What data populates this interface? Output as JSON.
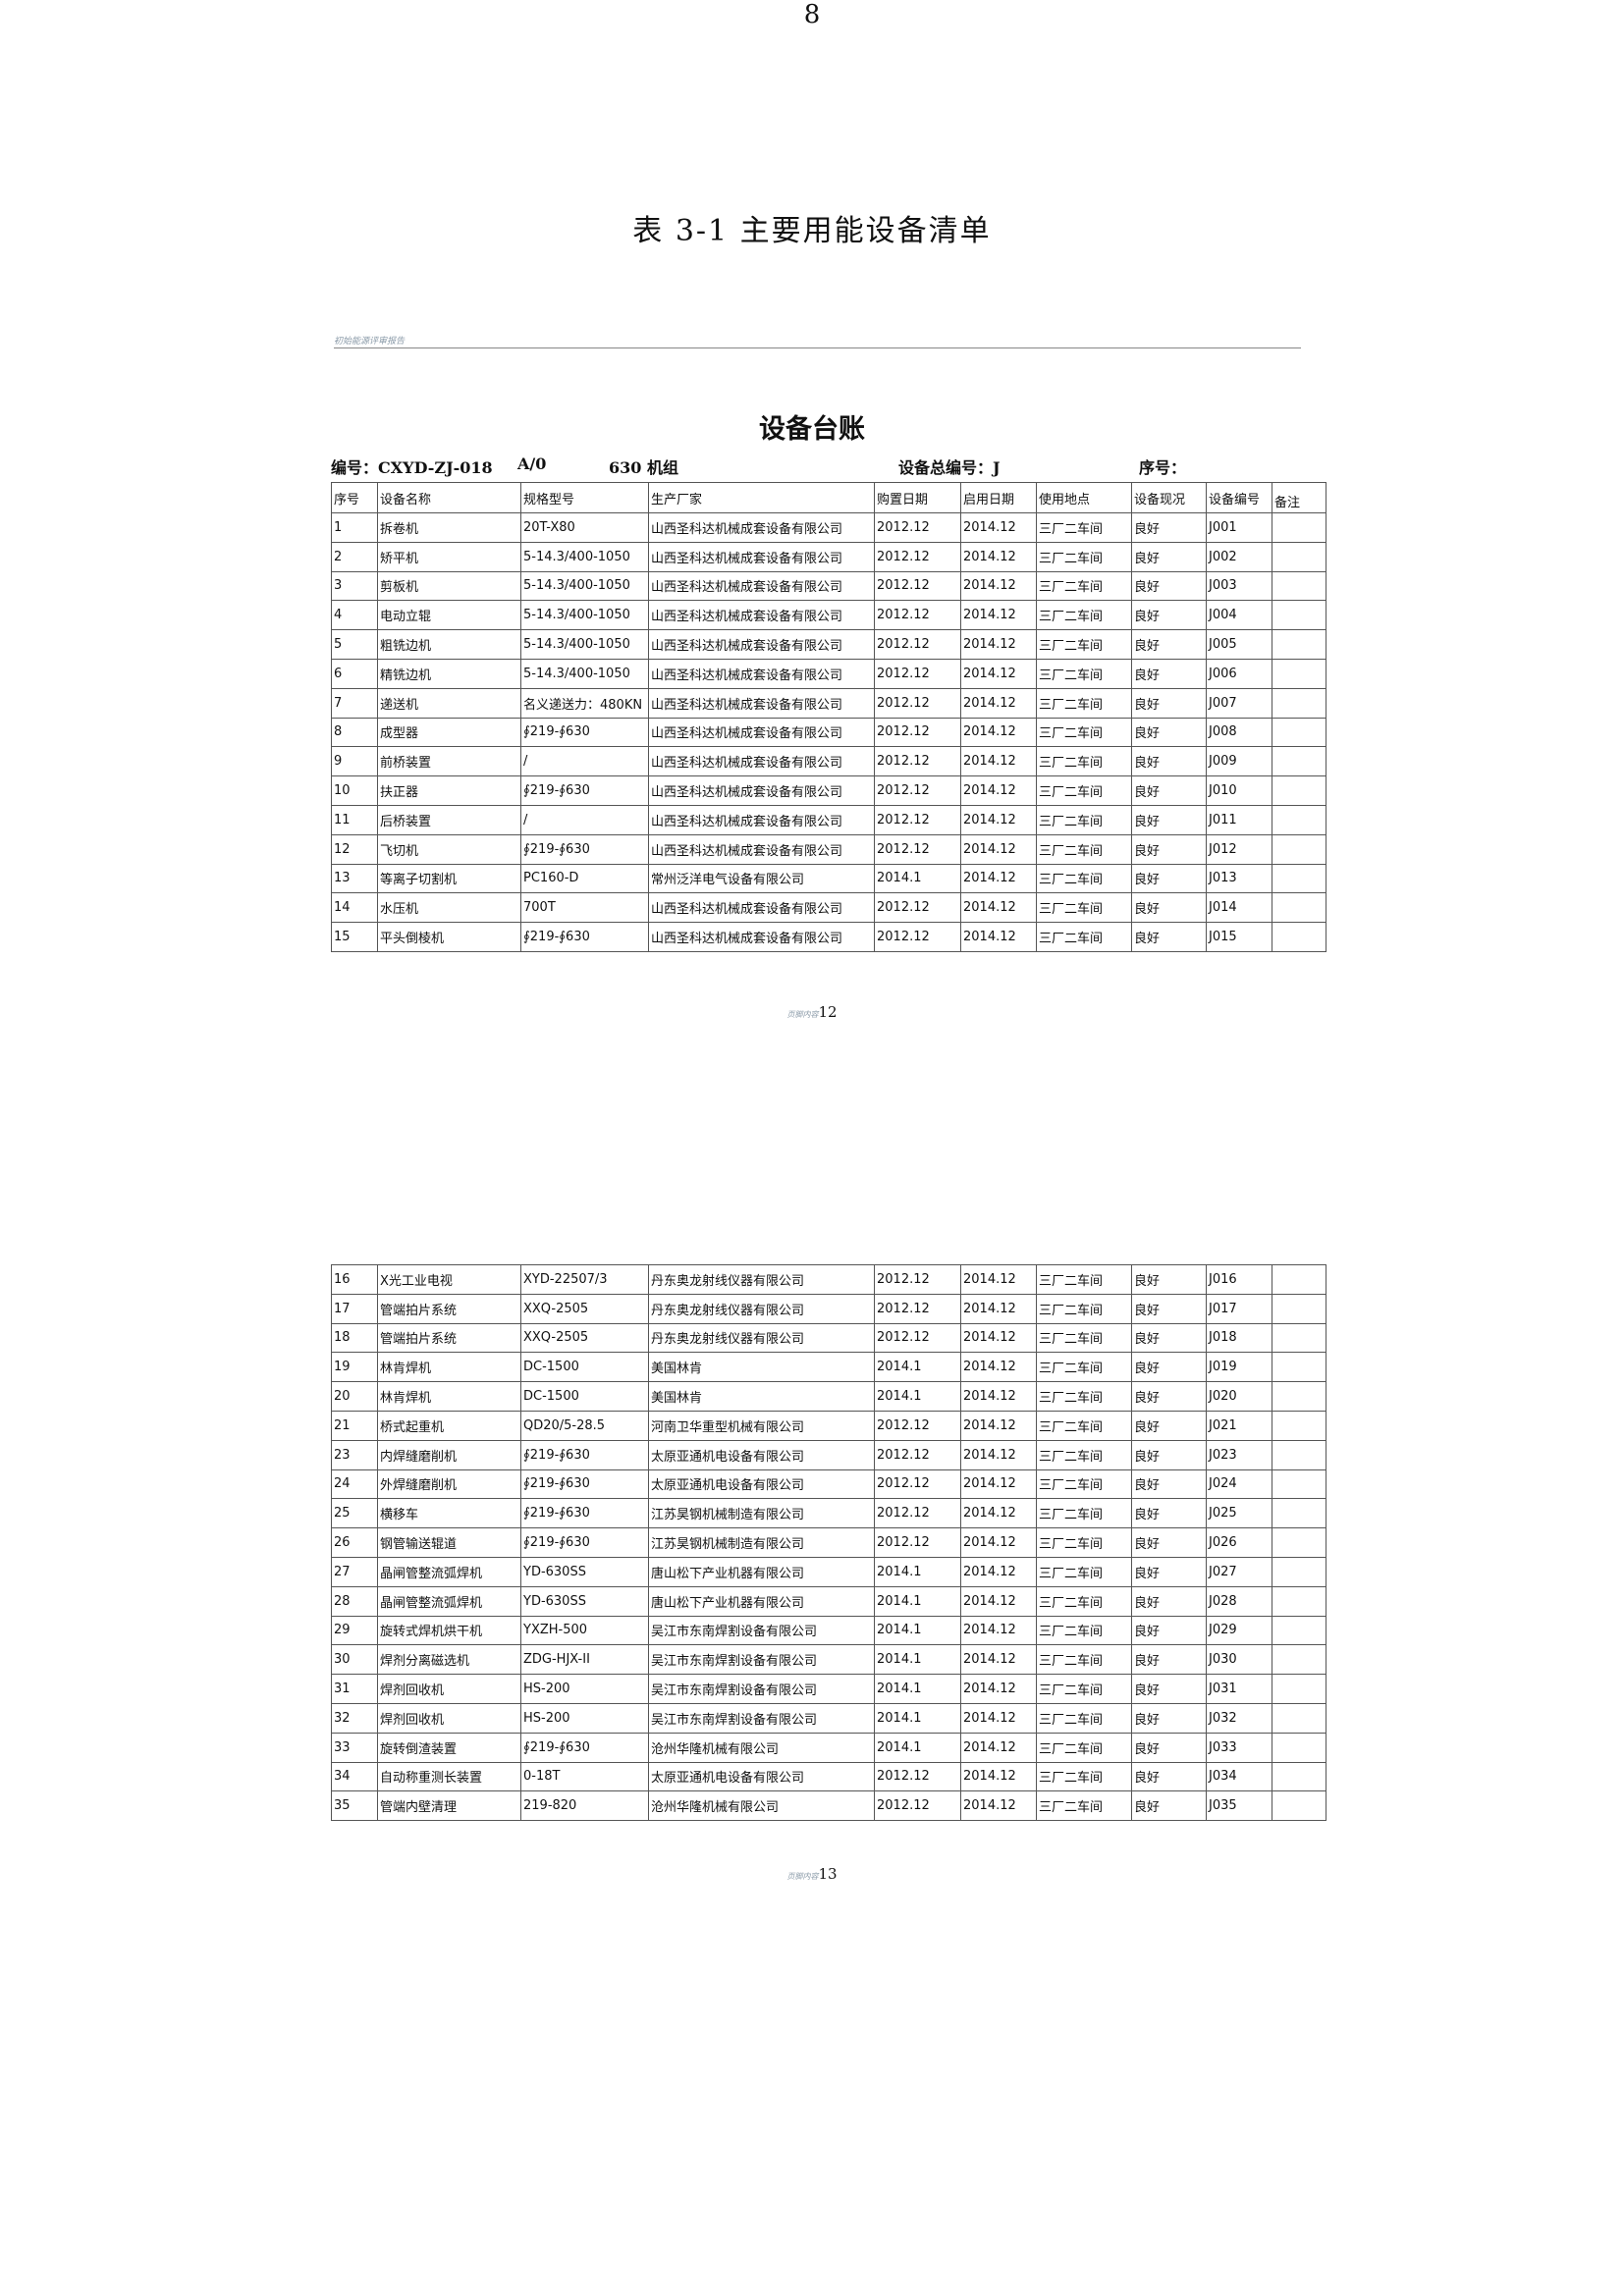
{
  "doc_title": "表 3-1  主要用能设备清单",
  "running_header": "初始能源评审报告",
  "ledger": {
    "title": "设备台账",
    "code": "编号：CXYD-ZJ-018",
    "version": "A/0",
    "unit": "630 机组",
    "equipment_total_no": "设备总编号：J",
    "serial_no": "序号："
  },
  "columns": [
    "序号",
    "设备名称",
    "规格型号",
    "生产厂家",
    "购置日期",
    "启用日期",
    "使用地点",
    "设备现况",
    "设备编号",
    "备注"
  ],
  "table1_rows": [
    [
      "1",
      "拆卷机",
      "20T-X80",
      "山西圣科达机械成套设备有限公司",
      "2012.12",
      "2014.12",
      "三厂二车间",
      "良好",
      "J001",
      ""
    ],
    [
      "2",
      "矫平机",
      "5-14.3/400-1050",
      "山西圣科达机械成套设备有限公司",
      "2012.12",
      "2014.12",
      "三厂二车间",
      "良好",
      "J002",
      ""
    ],
    [
      "3",
      "剪板机",
      "5-14.3/400-1050",
      "山西圣科达机械成套设备有限公司",
      "2012.12",
      "2014.12",
      "三厂二车间",
      "良好",
      "J003",
      ""
    ],
    [
      "4",
      "电动立辊",
      "5-14.3/400-1050",
      "山西圣科达机械成套设备有限公司",
      "2012.12",
      "2014.12",
      "三厂二车间",
      "良好",
      "J004",
      ""
    ],
    [
      "5",
      "粗铣边机",
      "5-14.3/400-1050",
      "山西圣科达机械成套设备有限公司",
      "2012.12",
      "2014.12",
      "三厂二车间",
      "良好",
      "J005",
      ""
    ],
    [
      "6",
      "精铣边机",
      "5-14.3/400-1050",
      "山西圣科达机械成套设备有限公司",
      "2012.12",
      "2014.12",
      "三厂二车间",
      "良好",
      "J006",
      ""
    ],
    [
      "7",
      "递送机",
      "名义递送力：480KN",
      "山西圣科达机械成套设备有限公司",
      "2012.12",
      "2014.12",
      "三厂二车间",
      "良好",
      "J007",
      ""
    ],
    [
      "8",
      "成型器",
      "∮219-∮630",
      "山西圣科达机械成套设备有限公司",
      "2012.12",
      "2014.12",
      "三厂二车间",
      "良好",
      "J008",
      ""
    ],
    [
      "9",
      "前桥装置",
      "/",
      "山西圣科达机械成套设备有限公司",
      "2012.12",
      "2014.12",
      "三厂二车间",
      "良好",
      "J009",
      ""
    ],
    [
      "10",
      "扶正器",
      "∮219-∮630",
      "山西圣科达机械成套设备有限公司",
      "2012.12",
      "2014.12",
      "三厂二车间",
      "良好",
      "J010",
      ""
    ],
    [
      "11",
      "后桥装置",
      "/",
      "山西圣科达机械成套设备有限公司",
      "2012.12",
      "2014.12",
      "三厂二车间",
      "良好",
      "J011",
      ""
    ],
    [
      "12",
      "飞切机",
      "∮219-∮630",
      "山西圣科达机械成套设备有限公司",
      "2012.12",
      "2014.12",
      "三厂二车间",
      "良好",
      "J012",
      ""
    ],
    [
      "13",
      "等离子切割机",
      "PC160-D",
      "常州泛洋电气设备有限公司",
      "2014.1",
      "2014.12",
      "三厂二车间",
      "良好",
      "J013",
      ""
    ],
    [
      "14",
      "水压机",
      "700T",
      "山西圣科达机械成套设备有限公司",
      "2012.12",
      "2014.12",
      "三厂二车间",
      "良好",
      "J014",
      ""
    ],
    [
      "15",
      "平头倒棱机",
      "∮219-∮630",
      "山西圣科达机械成套设备有限公司",
      "2012.12",
      "2014.12",
      "三厂二车间",
      "良好",
      "J015",
      ""
    ]
  ],
  "footer1": {
    "label": "页脚内容",
    "page": "12"
  },
  "table2_rows": [
    [
      "16",
      "X光工业电视",
      "XYD-22507/3",
      "丹东奥龙射线仪器有限公司",
      "2012.12",
      "2014.12",
      "三厂二车间",
      "良好",
      "J016",
      ""
    ],
    [
      "17",
      "管端拍片系统",
      "XXQ-2505",
      "丹东奥龙射线仪器有限公司",
      "2012.12",
      "2014.12",
      "三厂二车间",
      "良好",
      "J017",
      ""
    ],
    [
      "18",
      "管端拍片系统",
      "XXQ-2505",
      "丹东奥龙射线仪器有限公司",
      "2012.12",
      "2014.12",
      "三厂二车间",
      "良好",
      "J018",
      ""
    ],
    [
      "19",
      "林肯焊机",
      "DC-1500",
      "美国林肯",
      "2014.1",
      "2014.12",
      "三厂二车间",
      "良好",
      "J019",
      ""
    ],
    [
      "20",
      "林肯焊机",
      "DC-1500",
      "美国林肯",
      "2014.1",
      "2014.12",
      "三厂二车间",
      "良好",
      "J020",
      ""
    ],
    [
      "21",
      "桥式起重机",
      "QD20/5-28.5",
      "河南卫华重型机械有限公司",
      "2012.12",
      "2014.12",
      "三厂二车间",
      "良好",
      "J021",
      ""
    ],
    [
      "23",
      "内焊缝磨削机",
      "∮219-∮630",
      "太原亚通机电设备有限公司",
      "2012.12",
      "2014.12",
      "三厂二车间",
      "良好",
      "J023",
      ""
    ],
    [
      "24",
      "外焊缝磨削机",
      "∮219-∮630",
      "太原亚通机电设备有限公司",
      "2012.12",
      "2014.12",
      "三厂二车间",
      "良好",
      "J024",
      ""
    ],
    [
      "25",
      "横移车",
      "∮219-∮630",
      "江苏昊钢机械制造有限公司",
      "2012.12",
      "2014.12",
      "三厂二车间",
      "良好",
      "J025",
      ""
    ],
    [
      "26",
      "钢管输送辊道",
      "∮219-∮630",
      "江苏昊钢机械制造有限公司",
      "2012.12",
      "2014.12",
      "三厂二车间",
      "良好",
      "J026",
      ""
    ],
    [
      "27",
      "晶闸管整流弧焊机",
      "YD-630SS",
      "唐山松下产业机器有限公司",
      "2014.1",
      "2014.12",
      "三厂二车间",
      "良好",
      "J027",
      ""
    ],
    [
      "28",
      "晶闸管整流弧焊机",
      "YD-630SS",
      "唐山松下产业机器有限公司",
      "2014.1",
      "2014.12",
      "三厂二车间",
      "良好",
      "J028",
      ""
    ],
    [
      "29",
      "旋转式焊机烘干机",
      "YXZH-500",
      "吴江市东南焊割设备有限公司",
      "2014.1",
      "2014.12",
      "三厂二车间",
      "良好",
      "J029",
      ""
    ],
    [
      "30",
      "焊剂分离磁选机",
      "ZDG-HJX-II",
      "吴江市东南焊割设备有限公司",
      "2014.1",
      "2014.12",
      "三厂二车间",
      "良好",
      "J030",
      ""
    ],
    [
      "31",
      "焊剂回收机",
      "HS-200",
      "吴江市东南焊割设备有限公司",
      "2014.1",
      "2014.12",
      "三厂二车间",
      "良好",
      "J031",
      ""
    ],
    [
      "32",
      "焊剂回收机",
      "HS-200",
      "吴江市东南焊割设备有限公司",
      "2014.1",
      "2014.12",
      "三厂二车间",
      "良好",
      "J032",
      ""
    ],
    [
      "33",
      "旋转倒渣装置",
      "∮219-∮630",
      "沧州华隆机械有限公司",
      "2014.1",
      "2014.12",
      "三厂二车间",
      "良好",
      "J033",
      ""
    ],
    [
      "34",
      "自动称重测长装置",
      "0-18T",
      "太原亚通机电设备有限公司",
      "2012.12",
      "2014.12",
      "三厂二车间",
      "良好",
      "J034",
      ""
    ],
    [
      "35",
      "管端内壁清理",
      "219-820",
      "沧州华隆机械有限公司",
      "2012.12",
      "2014.12",
      "三厂二车间",
      "良好",
      "J035",
      ""
    ]
  ],
  "footer2": {
    "label": "页脚内容",
    "page": "13"
  },
  "page_number": "8"
}
